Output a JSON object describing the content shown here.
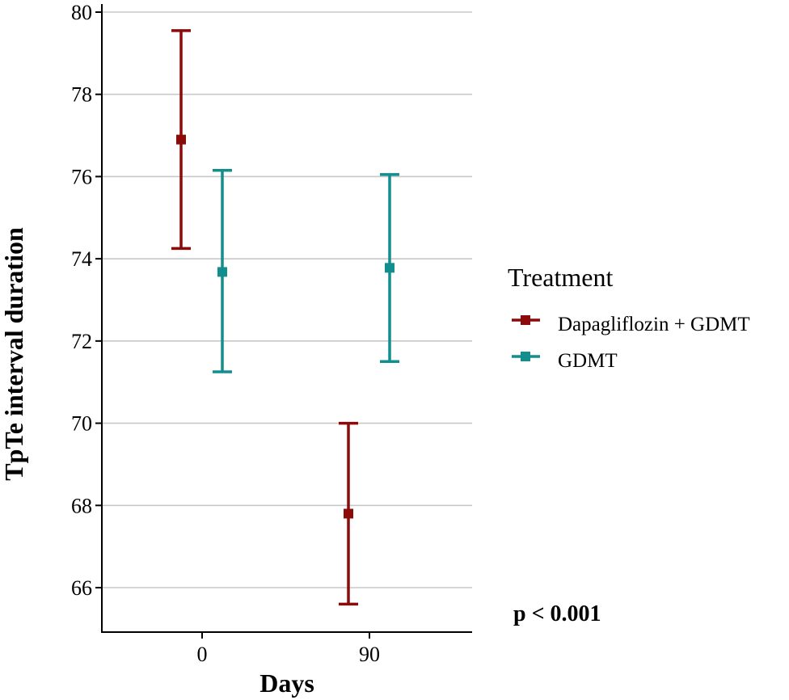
{
  "chart_data": {
    "type": "errorbar",
    "title": "",
    "xlabel": "Days",
    "ylabel": "TpTe interval duration",
    "categories": [
      "0",
      "90"
    ],
    "ylim": [
      64.8,
      80.2
    ],
    "yticks": [
      66,
      68,
      70,
      72,
      74,
      76,
      78,
      80
    ],
    "grid": "horizontal",
    "legend_title": "Treatment",
    "legend_position": "right",
    "series": [
      {
        "name": "Dapagliflozin + GDMT",
        "color": "#8B0A0A",
        "points": [
          {
            "category": "0",
            "mean": 76.9,
            "lower": 74.25,
            "upper": 79.55
          },
          {
            "category": "90",
            "mean": 67.8,
            "lower": 65.6,
            "upper": 70.0
          }
        ]
      },
      {
        "name": "GDMT",
        "color": "#138E8E",
        "points": [
          {
            "category": "0",
            "mean": 73.68,
            "lower": 71.25,
            "upper": 76.15
          },
          {
            "category": "90",
            "mean": 73.78,
            "lower": 71.5,
            "upper": 76.05
          }
        ]
      }
    ],
    "annotations": [
      "p < 0.001"
    ]
  }
}
